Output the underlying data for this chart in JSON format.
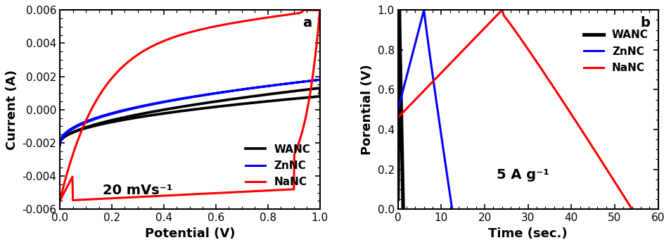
{
  "panel_a": {
    "title_label": "a",
    "xlabel": "Potential (V)",
    "ylabel": "Current (A)",
    "xlim": [
      0.0,
      1.0
    ],
    "ylim": [
      -0.006,
      0.006
    ],
    "xticks": [
      0.0,
      0.2,
      0.4,
      0.6,
      0.8,
      1.0
    ],
    "yticks": [
      -0.006,
      -0.004,
      -0.002,
      0.0,
      0.002,
      0.004,
      0.006
    ],
    "annotation": "20 mVs⁻¹",
    "legend_labels": [
      "WANC",
      "ZnNC",
      "NaNC"
    ],
    "legend_colors": [
      "#000000",
      "#0000ff",
      "#ff0000"
    ]
  },
  "panel_b": {
    "title_label": "b",
    "xlabel": "Time (sec.)",
    "ylabel": "Porential (V)",
    "xlim": [
      0,
      60
    ],
    "ylim": [
      0.0,
      1.0
    ],
    "xticks": [
      0,
      10,
      20,
      30,
      40,
      50,
      60
    ],
    "yticks": [
      0.0,
      0.2,
      0.4,
      0.6,
      0.8,
      1.0
    ],
    "annotation": "5 A g⁻¹",
    "legend_labels": [
      "WANC",
      "ZnNC",
      "NaNC"
    ],
    "legend_colors": [
      "#000000",
      "#0000ff",
      "#ff0000"
    ]
  },
  "background_color": "#ffffff",
  "spine_color": "#000000",
  "tick_color": "#000000",
  "label_fontsize": 13,
  "tick_fontsize": 11,
  "legend_fontsize": 11,
  "annotation_fontsize": 14,
  "title_fontsize": 14,
  "linewidth": 2.2
}
